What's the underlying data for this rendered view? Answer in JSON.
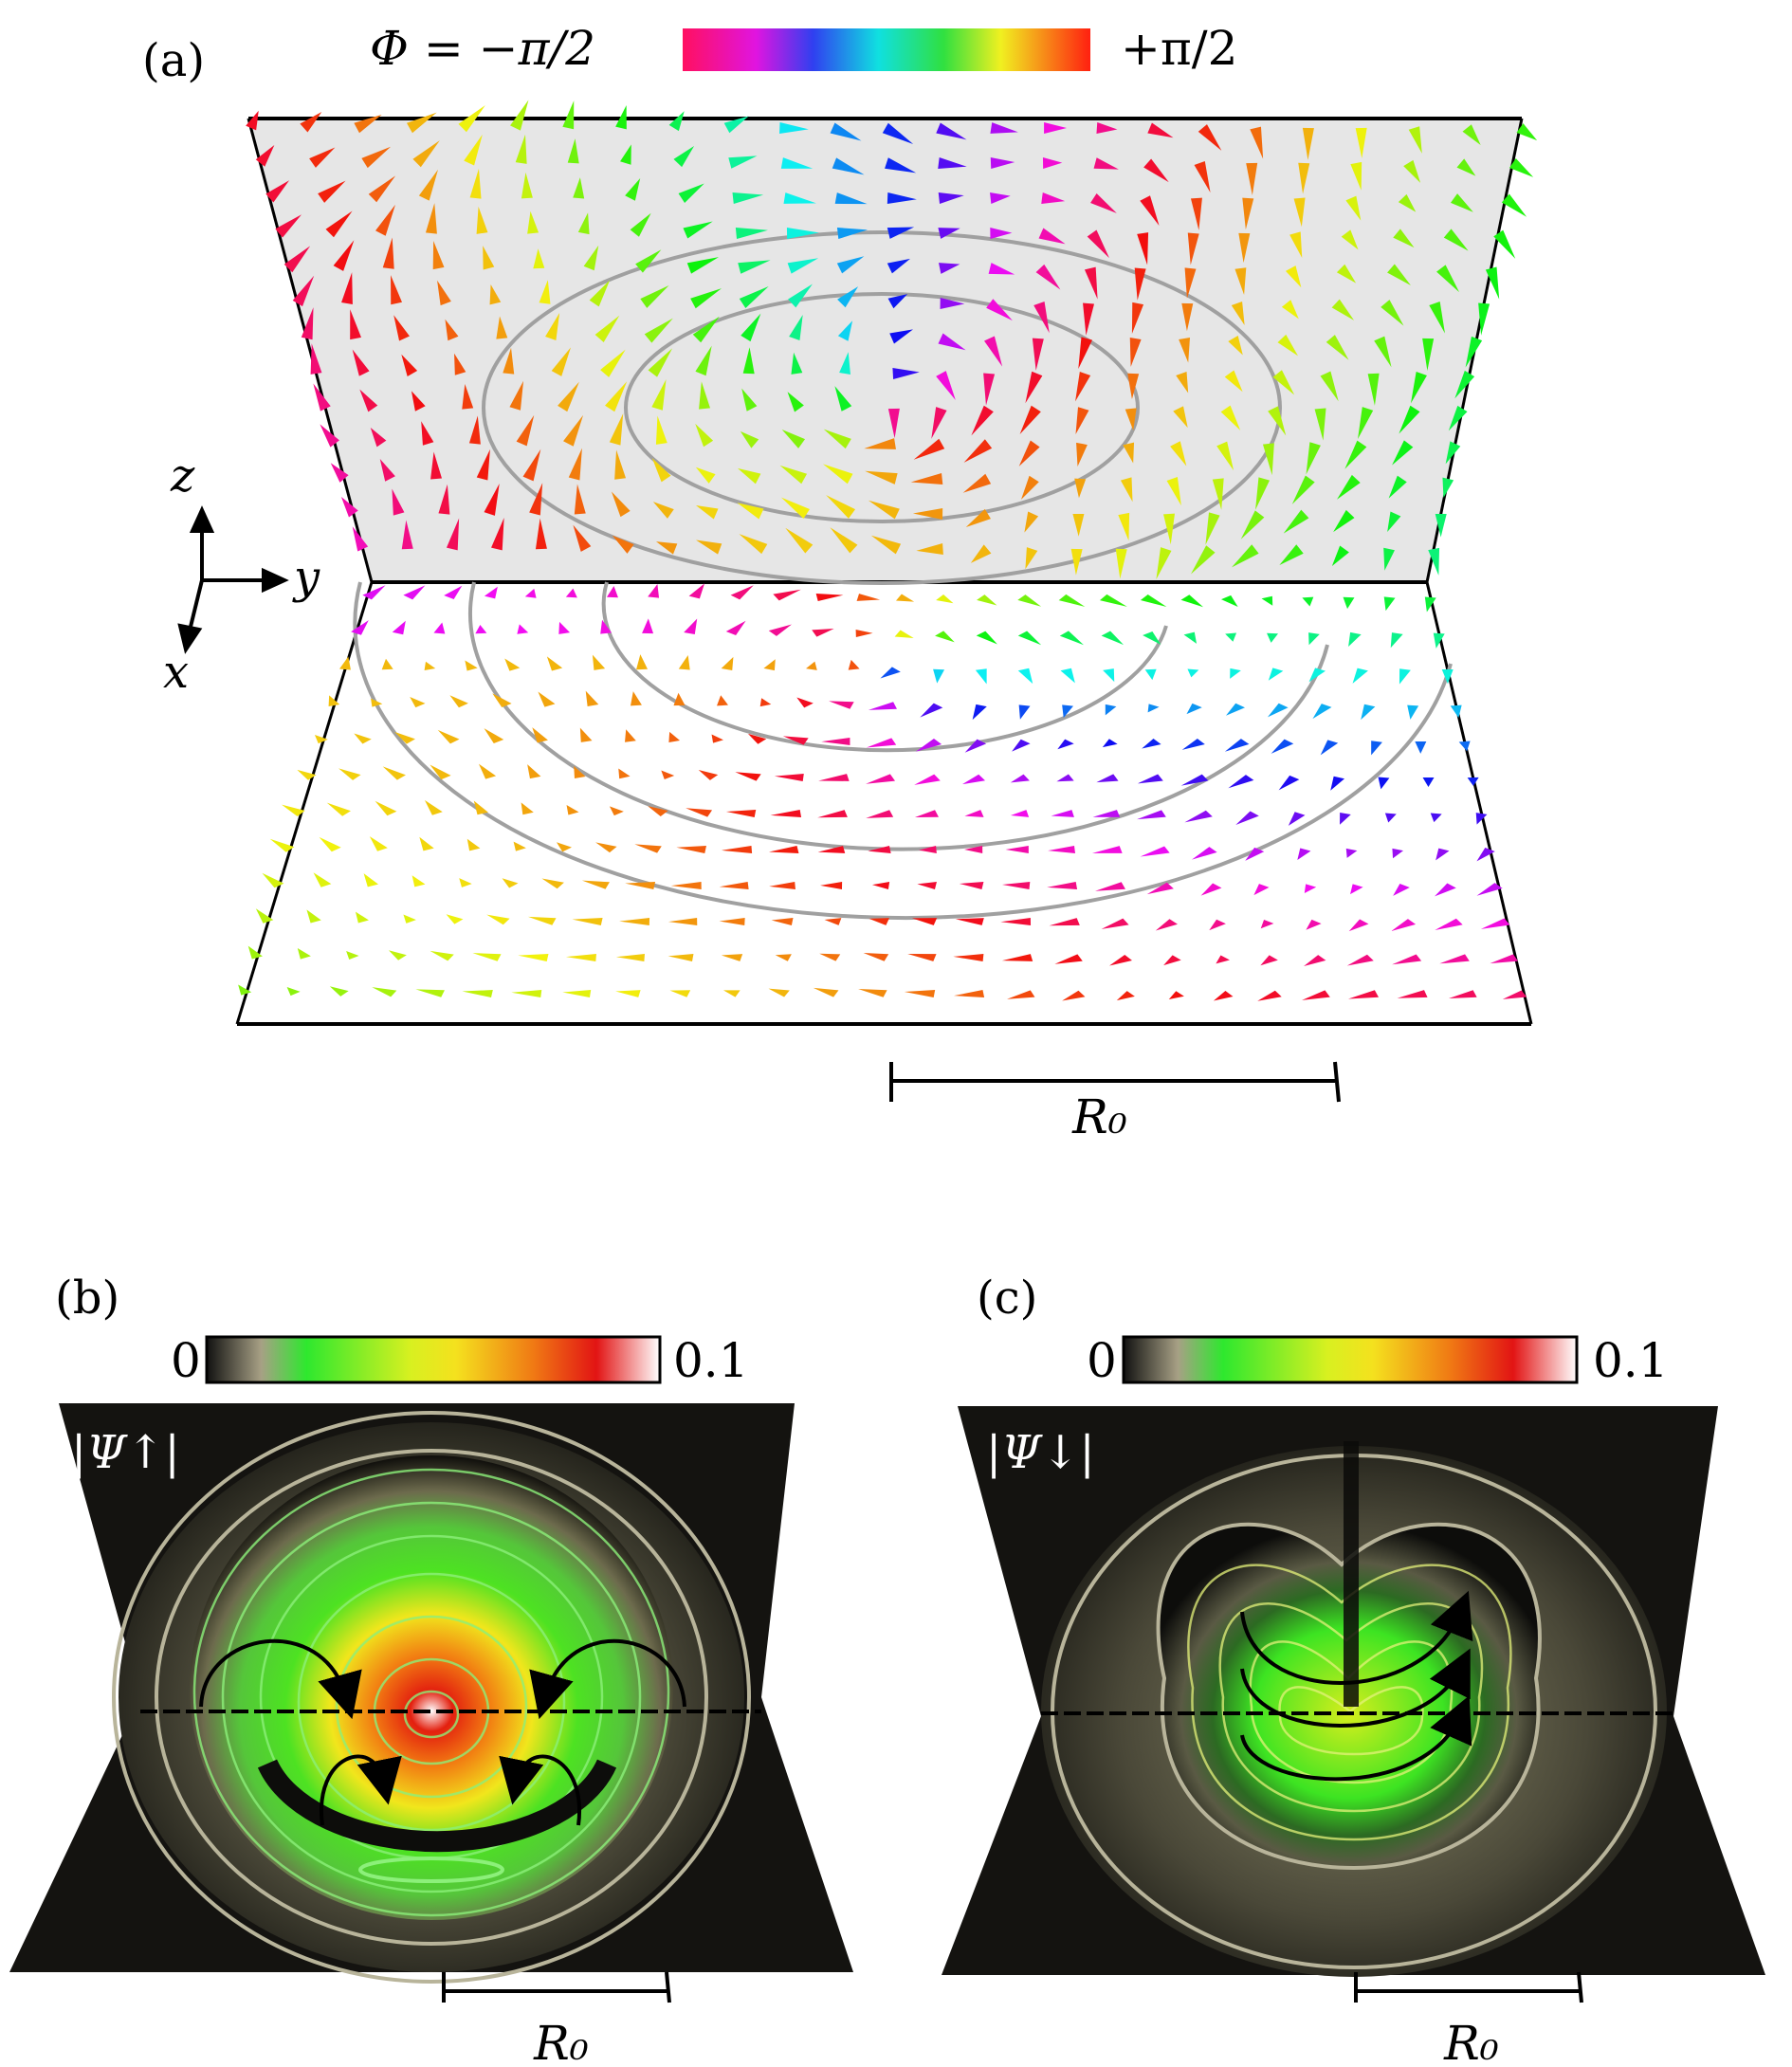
{
  "panel_a": {
    "label": "(a)",
    "colorbar_left": "Φ = −π/2",
    "colorbar_right": "+π/2",
    "axis_z": "z",
    "axis_y": "y",
    "axis_x": "x",
    "scale_label": "R₀"
  },
  "panel_b": {
    "label": "(b)",
    "colorbar_min": "0",
    "colorbar_max": "0.1",
    "field_label": "|Ψ↑|",
    "scale_label": "R₀"
  },
  "panel_c": {
    "label": "(c)",
    "colorbar_min": "0",
    "colorbar_max": "0.1",
    "field_label": "|Ψ↓|",
    "scale_label": "R₀"
  },
  "colors": {
    "background_panel": "#e8e8e8",
    "contour_gray": "#9a9a9a",
    "density_dark": "#1a1814",
    "density_green": "#39e81e",
    "density_yellow": "#f4f21a",
    "density_red": "#e4260c"
  }
}
